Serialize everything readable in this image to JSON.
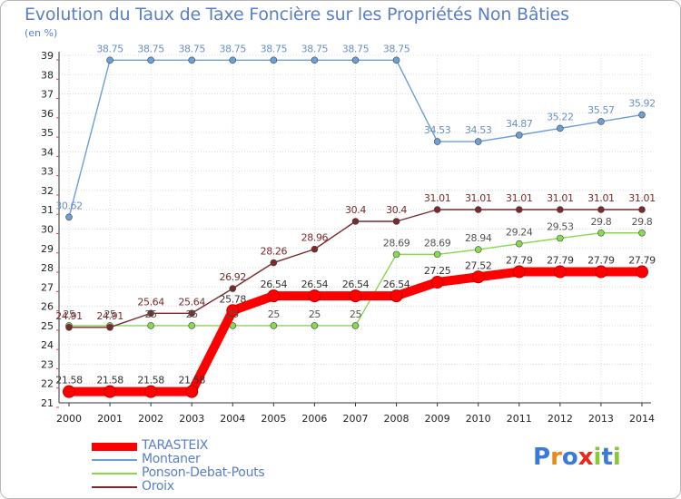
{
  "chart_data": {
    "type": "line",
    "title": "Evolution du Taux de Taxe Foncière sur les Propriétés Non Bâties",
    "subtitle": "(en %)",
    "x": [
      "2000",
      "2001",
      "2002",
      "2003",
      "2004",
      "2005",
      "2006",
      "2007",
      "2008",
      "2009",
      "2010",
      "2011",
      "2012",
      "2013",
      "2014"
    ],
    "ylim": [
      21,
      39
    ],
    "yticks": [
      21,
      22,
      23,
      24,
      25,
      26,
      27,
      28,
      29,
      30,
      31,
      32,
      33,
      34,
      35,
      36,
      37,
      38,
      39
    ],
    "grid": true,
    "series": [
      {
        "name": "TARASTEIX",
        "color": "#ff0000",
        "values": [
          21.58,
          21.58,
          21.58,
          21.58,
          25.78,
          26.54,
          26.54,
          26.54,
          26.54,
          27.25,
          27.52,
          27.79,
          27.79,
          27.79,
          27.79
        ],
        "labels": [
          "21.58",
          "21.58",
          "21.58",
          "21.58",
          "25.78",
          "26.54",
          "26.54",
          "26.54",
          "26.54",
          "27.25",
          "27.52",
          "27.79",
          "27.79",
          "27.79",
          "27.79"
        ]
      },
      {
        "name": "Montaner",
        "color": "#6a9fd8",
        "values": [
          30.62,
          38.75,
          38.75,
          38.75,
          38.75,
          38.75,
          38.75,
          38.75,
          38.75,
          34.53,
          34.53,
          34.87,
          35.22,
          35.57,
          35.92
        ],
        "labels": [
          "30.62",
          "38.75",
          "38.75",
          "38.75",
          "38.75",
          "38.75",
          "38.75",
          "38.75",
          "38.75",
          "34.53",
          "34.53",
          "34.87",
          "35.22",
          "35.57",
          "35.92"
        ]
      },
      {
        "name": "Ponson-Debat-Pouts",
        "color": "#88d850",
        "values": [
          25,
          25,
          25,
          25,
          25,
          25,
          25,
          25,
          28.69,
          28.69,
          28.94,
          29.24,
          29.53,
          29.8,
          29.8
        ],
        "labels": [
          "25",
          "25",
          "25",
          "25",
          "25",
          "25",
          "25",
          "25",
          "28.69",
          "28.69",
          "28.94",
          "29.24",
          "29.53",
          "29.8",
          "29.8"
        ]
      },
      {
        "name": "Oroix",
        "color": "#7a2a2a",
        "values": [
          24.91,
          24.91,
          25.64,
          25.64,
          26.92,
          28.26,
          28.96,
          30.4,
          30.4,
          31.01,
          31.01,
          31.01,
          31.01,
          31.01,
          31.01
        ],
        "labels": [
          "24.91",
          "24.91",
          "25.64",
          "25.64",
          "26.92",
          "28.26",
          "28.96",
          "30.4",
          "30.4",
          "31.01",
          "31.01",
          "31.01",
          "31.01",
          "31.01",
          "31.01"
        ]
      }
    ]
  },
  "legend": {
    "position": "bottom-left",
    "items": [
      {
        "label": "TARASTEIX",
        "color": "#ff0000"
      },
      {
        "label": "Montaner",
        "color": "#6a9fd8"
      },
      {
        "label": "Ponson-Debat-Pouts",
        "color": "#88d850"
      },
      {
        "label": "Oroix",
        "color": "#7a2a2a"
      }
    ]
  },
  "logo": {
    "letters": [
      "P",
      "r",
      "o",
      "x",
      "i",
      "t",
      "i"
    ],
    "colors": [
      "#3a7ad8",
      "#e88a1a",
      "#3a7ad8",
      "#e8281a",
      "#88c838",
      "#3a7ad8",
      "#88c838"
    ]
  }
}
